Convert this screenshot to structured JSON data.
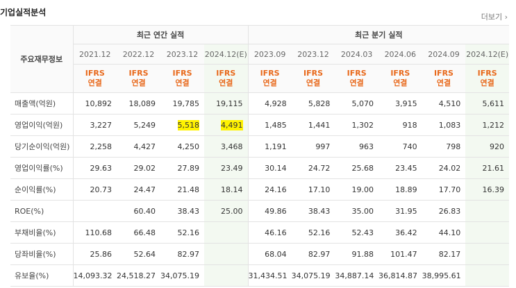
{
  "header": {
    "title": "기업실적분석",
    "more": "더보기 ›"
  },
  "table": {
    "row_header": "주요재무정보",
    "groups": [
      {
        "label": "최근 연간 실적",
        "span": 4
      },
      {
        "label": "최근 분기 실적",
        "span": 6
      }
    ],
    "columns": [
      {
        "period": "2021.12",
        "basis": "IFRS\n연결"
      },
      {
        "period": "2022.12",
        "basis": "IFRS\n연결"
      },
      {
        "period": "2023.12",
        "basis": "IFRS\n연결"
      },
      {
        "period": "2024.12(E)",
        "basis": "IFRS\n연결",
        "estimate": true
      },
      {
        "period": "2023.09",
        "basis": "IFRS\n연결"
      },
      {
        "period": "2023.12",
        "basis": "IFRS\n연결"
      },
      {
        "period": "2024.03",
        "basis": "IFRS\n연결"
      },
      {
        "period": "2024.06",
        "basis": "IFRS\n연결"
      },
      {
        "period": "2024.09",
        "basis": "IFRS\n연결"
      },
      {
        "period": "2024.12(E)",
        "basis": "IFRS\n연결",
        "estimate": true
      }
    ],
    "rows": [
      {
        "label": "매출액(억원)",
        "values": [
          "10,892",
          "18,089",
          "19,785",
          "19,115",
          "4,928",
          "5,828",
          "5,070",
          "3,915",
          "4,510",
          "5,611"
        ]
      },
      {
        "label": "영업이익(억원)",
        "values": [
          "3,227",
          "5,249",
          "5,518",
          "4,491",
          "1,485",
          "1,441",
          "1,302",
          "918",
          "1,083",
          "1,212"
        ],
        "highlight": [
          2,
          3
        ]
      },
      {
        "label": "당기순이익(억원)",
        "values": [
          "2,258",
          "4,427",
          "4,250",
          "3,468",
          "1,191",
          "997",
          "963",
          "740",
          "798",
          "920"
        ]
      },
      {
        "label": "영업이익률(%)",
        "values": [
          "29.63",
          "29.02",
          "27.89",
          "23.49",
          "30.14",
          "24.72",
          "25.68",
          "23.45",
          "24.02",
          "21.61"
        ]
      },
      {
        "label": "순이익률(%)",
        "values": [
          "20.73",
          "24.47",
          "21.48",
          "18.14",
          "24.16",
          "17.10",
          "19.00",
          "18.89",
          "17.70",
          "16.39"
        ]
      },
      {
        "label": "ROE(%)",
        "values": [
          null,
          "60.40",
          "38.43",
          "25.00",
          "49.86",
          "38.43",
          "35.00",
          "31.95",
          "26.83",
          null
        ]
      },
      {
        "label": "부채비율(%)",
        "values": [
          "110.68",
          "66.48",
          "52.16",
          null,
          "46.16",
          "52.16",
          "52.43",
          "36.42",
          "44.10",
          null
        ]
      },
      {
        "label": "당좌비율(%)",
        "values": [
          "25.86",
          "52.64",
          "82.97",
          null,
          "68.04",
          "82.97",
          "91.88",
          "101.47",
          "82.17",
          null
        ]
      },
      {
        "label": "유보율(%)",
        "values": [
          "14,093.32",
          "24,518.27",
          "34,075.19",
          null,
          "31,434.51",
          "34,075.19",
          "34,887.14",
          "36,814.87",
          "38,995.61",
          null
        ]
      }
    ]
  }
}
